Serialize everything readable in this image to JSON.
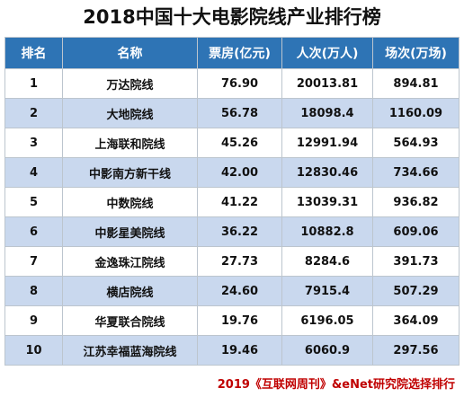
{
  "title": "2018中国十大电影院线产业排行榜",
  "headers": [
    "排名",
    "名称",
    "票房(亿元)",
    "人次(万人)",
    "场次(万场)"
  ],
  "rows": [
    {
      "rank": "1",
      "name": "万达院线",
      "box_office": "76.90",
      "audience": "20013.81",
      "screenings": "894.81"
    },
    {
      "rank": "2",
      "name": "大地院线",
      "box_office": "56.78",
      "audience": "18098.4",
      "screenings": "1160.09"
    },
    {
      "rank": "3",
      "name": "上海联和院线",
      "box_office": "45.26",
      "audience": "12991.94",
      "screenings": "564.93"
    },
    {
      "rank": "4",
      "name": "中影南方新干线",
      "box_office": "42.00",
      "audience": "12830.46",
      "screenings": "734.66"
    },
    {
      "rank": "5",
      "name": "中数院线",
      "box_office": "41.22",
      "audience": "13039.31",
      "screenings": "936.82"
    },
    {
      "rank": "6",
      "name": "中影星美院线",
      "box_office": "36.22",
      "audience": "10882.8",
      "screenings": "609.06"
    },
    {
      "rank": "7",
      "name": "金逸珠江院线",
      "box_office": "27.73",
      "audience": "8284.6",
      "screenings": "391.73"
    },
    {
      "rank": "8",
      "name": "横店院线",
      "box_office": "24.60",
      "audience": "7915.4",
      "screenings": "507.29"
    },
    {
      "rank": "9",
      "name": "华夏联合院线",
      "box_office": "19.76",
      "audience": "6196.05",
      "screenings": "364.09"
    },
    {
      "rank": "10",
      "name": "江苏幸福蓝海院线",
      "box_office": "19.46",
      "audience": "6060.9",
      "screenings": "297.56"
    }
  ],
  "footer": "2019《互联网周刊》&eNet研究院选择排行",
  "colors": {
    "header_bg": "#2e74b5",
    "alt_row_bg": "#c9d8ee",
    "footer_text": "#c00000"
  }
}
